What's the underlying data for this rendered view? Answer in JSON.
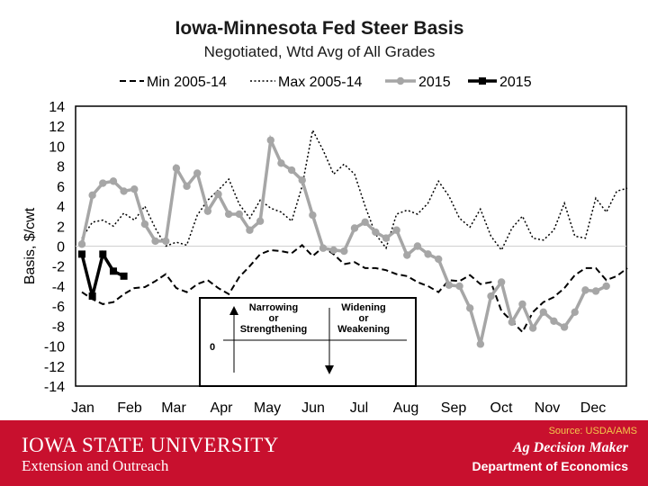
{
  "chart_data": {
    "type": "line",
    "title": "Iowa-Minnesota Fed Steer Basis",
    "subtitle": "Negotiated, Wtd Avg of All Grades",
    "ylabel": "Basis, $/cwt",
    "xlabel": "",
    "ylim": [
      -14,
      14
    ],
    "yticks": [
      14,
      12,
      10,
      8,
      6,
      4,
      2,
      0,
      -2,
      -4,
      -6,
      -8,
      -10,
      -12,
      -14
    ],
    "months": [
      "Jan",
      "Feb",
      "Mar",
      "Apr",
      "May",
      "Jun",
      "Jul",
      "Aug",
      "Sep",
      "Oct",
      "Nov",
      "Dec"
    ],
    "weeks": 53,
    "series": [
      {
        "name": "Min 2005-14",
        "style": "dashed",
        "color": "#000000",
        "values": [
          -4.6,
          -5.3,
          -5.8,
          -5.6,
          -4.8,
          -4.2,
          -4.1,
          -3.5,
          -2.8,
          -4.2,
          -4.6,
          -3.8,
          -3.4,
          -4.2,
          -4.8,
          -3.1,
          -2.0,
          -0.8,
          -0.4,
          -0.5,
          -0.7,
          0.1,
          -1.0,
          -0.1,
          -0.8,
          -1.8,
          -1.6,
          -2.2,
          -2.2,
          -2.4,
          -2.8,
          -3.0,
          -3.6,
          -4.0,
          -4.6,
          -3.4,
          -3.5,
          -2.9,
          -3.8,
          -3.6,
          -6.5,
          -7.5,
          -8.6,
          -6.6,
          -5.6,
          -5.1,
          -4.2,
          -2.9,
          -2.2,
          -2.2,
          -3.4,
          -3.0,
          -2.2
        ]
      },
      {
        "name": "Max 2005-14",
        "style": "dotted",
        "color": "#000000",
        "values": [
          0.8,
          2.4,
          2.6,
          2.0,
          3.3,
          2.6,
          4.0,
          1.8,
          0.0,
          0.4,
          0.1,
          3.1,
          4.6,
          5.6,
          6.7,
          4.2,
          2.8,
          4.6,
          3.8,
          3.4,
          2.5,
          6.0,
          11.6,
          9.6,
          7.2,
          8.2,
          7.2,
          4.0,
          1.2,
          -0.2,
          3.2,
          3.6,
          3.2,
          4.3,
          6.5,
          5.0,
          2.8,
          1.9,
          3.7,
          1.0,
          -0.4,
          1.8,
          3.0,
          0.8,
          0.6,
          1.6,
          4.3,
          1.0,
          0.8,
          4.8,
          3.4,
          5.5,
          5.8
        ]
      },
      {
        "name": "2015",
        "style": "gray-circles",
        "color": "#a6a6a6",
        "values": [
          0.2,
          5.1,
          6.3,
          6.5,
          5.5,
          5.7,
          2.2,
          0.5,
          0.5,
          7.8,
          6.0,
          7.3,
          3.5,
          5.2,
          3.2,
          3.2,
          1.6,
          2.5,
          10.6,
          8.3,
          7.6,
          6.6,
          3.1,
          -0.2,
          -0.4,
          -0.5,
          1.8,
          2.4,
          1.4,
          0.8,
          1.6,
          -0.9,
          0.0,
          -0.8,
          -1.3,
          -3.9,
          -4.0,
          -6.2,
          -9.8,
          -5.0,
          -3.6,
          -7.6,
          -5.8,
          -8.2,
          -6.6,
          -7.5,
          -8.1,
          -6.6,
          -4.4,
          -4.5,
          -4.0
        ]
      },
      {
        "name": "2015",
        "style": "black-squares",
        "color": "#000000",
        "values": [
          -0.8,
          -5.0,
          -0.8,
          -2.5,
          -3.0
        ]
      }
    ],
    "annotation": {
      "left_label": "Narrowing or Strengthening",
      "right_label": "Widening or Weakening",
      "zero_label": "0"
    }
  },
  "footer": {
    "source": "Source: USDA/AMS",
    "university": "IOWA STATE UNIVERSITY",
    "extension": "Extension and Outreach",
    "ag_decision": "Ag Decision Maker",
    "department": "Department of Economics"
  }
}
